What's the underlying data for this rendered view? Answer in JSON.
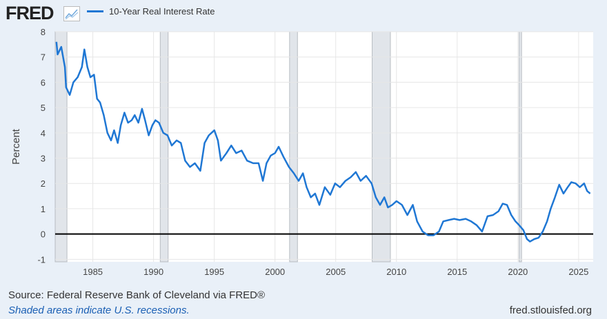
{
  "header": {
    "logo": "FRED",
    "legend_label": "10-Year Real Interest Rate",
    "legend_color": "#1f77d4"
  },
  "footer": {
    "source": "Source: Federal Reserve Bank of Cleveland via FRED®",
    "note": "Shaded areas indicate U.S. recessions.",
    "url": "fred.stlouisfed.org"
  },
  "chart_data": {
    "type": "line",
    "title": "10-Year Real Interest Rate",
    "xlabel": "",
    "ylabel": "Percent",
    "xlim": [
      1981.9,
      2026.2
    ],
    "ylim": [
      -1.1,
      8.0
    ],
    "xticks": [
      1985,
      1990,
      1995,
      2000,
      2005,
      2010,
      2015,
      2020,
      2025
    ],
    "xtick_labels": [
      "1985",
      "1990",
      "1995",
      "2000",
      "2005",
      "2010",
      "2015",
      "2020",
      "2025"
    ],
    "yticks": [
      -1,
      0,
      1,
      2,
      3,
      4,
      5,
      6,
      7,
      8
    ],
    "ytick_labels": [
      "-1",
      "0",
      "1",
      "2",
      "3",
      "4",
      "5",
      "6",
      "7",
      "8"
    ],
    "recessions": [
      [
        1981.55,
        1982.87
      ],
      [
        1990.55,
        1991.2
      ],
      [
        2001.2,
        2001.85
      ],
      [
        2008.0,
        2009.5
      ],
      [
        2020.1,
        2020.3
      ]
    ],
    "series": [
      {
        "name": "10-Year Real Interest Rate",
        "color": "#1f77d4",
        "x": [
          1982.0,
          1982.1,
          1982.4,
          1982.7,
          1982.8,
          1983.1,
          1983.4,
          1983.75,
          1984.1,
          1984.3,
          1984.55,
          1984.8,
          1985.1,
          1985.35,
          1985.6,
          1985.9,
          1986.2,
          1986.5,
          1986.75,
          1987.05,
          1987.3,
          1987.6,
          1987.9,
          1988.2,
          1988.45,
          1988.75,
          1989.05,
          1989.3,
          1989.6,
          1989.9,
          1990.15,
          1990.45,
          1990.8,
          1991.15,
          1991.5,
          1991.9,
          1992.25,
          1992.6,
          1993.0,
          1993.4,
          1993.85,
          1994.2,
          1994.55,
          1995.0,
          1995.3,
          1995.55,
          1996.0,
          1996.4,
          1996.8,
          1997.25,
          1997.7,
          1998.2,
          1998.65,
          1999.0,
          1999.3,
          1999.65,
          2000.0,
          2000.3,
          2000.7,
          2001.15,
          2001.55,
          2001.95,
          2002.3,
          2002.6,
          2002.95,
          2003.3,
          2003.65,
          2004.1,
          2004.55,
          2004.95,
          2005.35,
          2005.8,
          2006.25,
          2006.65,
          2007.05,
          2007.5,
          2007.95,
          2008.3,
          2008.65,
          2009.0,
          2009.3,
          2009.65,
          2010.0,
          2010.45,
          2010.9,
          2011.35,
          2011.7,
          2012.15,
          2012.6,
          2013.05,
          2013.5,
          2013.85,
          2014.3,
          2014.75,
          2015.2,
          2015.7,
          2016.15,
          2016.6,
          2017.05,
          2017.5,
          2017.95,
          2018.4,
          2018.75,
          2019.1,
          2019.45,
          2019.8,
          2020.1,
          2020.45,
          2020.75,
          2021.0,
          2021.35,
          2021.7,
          2022.05,
          2022.4,
          2022.7,
          2023.05,
          2023.4,
          2023.75,
          2024.1,
          2024.4,
          2024.75,
          2025.1,
          2025.45,
          2025.7,
          2025.95
        ],
        "values": [
          7.6,
          7.1,
          7.4,
          6.6,
          5.8,
          5.5,
          6.0,
          6.2,
          6.6,
          7.3,
          6.6,
          6.2,
          6.3,
          5.35,
          5.2,
          4.7,
          4.0,
          3.7,
          4.1,
          3.6,
          4.3,
          4.8,
          4.4,
          4.5,
          4.7,
          4.4,
          4.95,
          4.5,
          3.9,
          4.3,
          4.5,
          4.4,
          4.0,
          3.9,
          3.5,
          3.7,
          3.6,
          2.9,
          2.65,
          2.8,
          2.5,
          3.6,
          3.9,
          4.1,
          3.7,
          2.9,
          3.2,
          3.5,
          3.2,
          3.3,
          2.9,
          2.8,
          2.8,
          2.1,
          2.8,
          3.1,
          3.2,
          3.45,
          3.05,
          2.65,
          2.4,
          2.1,
          2.4,
          1.85,
          1.45,
          1.6,
          1.15,
          1.85,
          1.55,
          2.0,
          1.85,
          2.1,
          2.25,
          2.45,
          2.1,
          2.3,
          2.0,
          1.45,
          1.15,
          1.45,
          1.05,
          1.15,
          1.3,
          1.15,
          0.75,
          1.15,
          0.5,
          0.1,
          -0.05,
          -0.05,
          0.1,
          0.5,
          0.55,
          0.6,
          0.55,
          0.6,
          0.5,
          0.35,
          0.1,
          0.7,
          0.75,
          0.9,
          1.2,
          1.15,
          0.75,
          0.5,
          0.35,
          0.15,
          -0.2,
          -0.3,
          -0.2,
          -0.15,
          0.1,
          0.5,
          1.0,
          1.45,
          1.95,
          1.6,
          1.85,
          2.05,
          2.0,
          1.85,
          2.0,
          1.7,
          1.6
        ]
      }
    ]
  }
}
